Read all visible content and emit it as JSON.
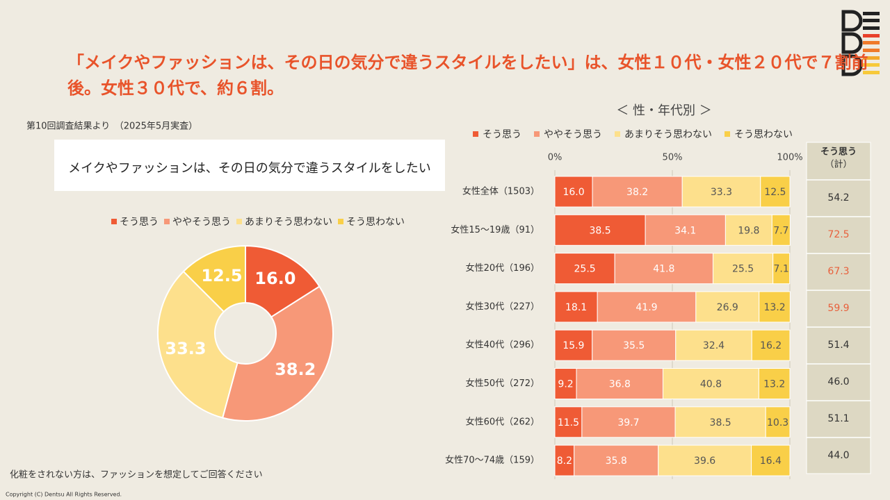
{
  "headline": [
    "「メイクやファッションは、その日の気分で違うスタイルをしたい」は、女性１０代・女性２０代で７割前",
    "後。女性３０代で、約６割。"
  ],
  "source_note": "第10回調査結果より　（2025年5月実査）",
  "footnote": "化粧をされない方は、ファッションを想定してご回答ください",
  "copyright": "Copyright (C) Dentsu All Rights Reserved.",
  "chart_data": [
    {
      "type": "pie",
      "title": "メイクやファッションは、その日の気分で違うスタイルをしたい",
      "categories": [
        "そう思う",
        "ややそう思う",
        "あまりそう思わない",
        "そう思わない"
      ],
      "values": [
        16.0,
        38.2,
        33.3,
        12.5
      ],
      "value_labels": [
        "16.0",
        "38.2",
        "33.3",
        "12.5"
      ],
      "colors": [
        "#ef5b35",
        "#f79878",
        "#fde08c",
        "#f9cf48"
      ],
      "donut": true
    },
    {
      "type": "stacked_bar",
      "orientation": "horizontal",
      "title": "＜ 性・年代別 ＞",
      "categories": [
        "女性全体（1503）",
        "女性15～19歳（91）",
        "女性20代（196）",
        "女性30代（227）",
        "女性40代（296）",
        "女性50代（272）",
        "女性60代（262）",
        "女性70～74歳（159）"
      ],
      "series": [
        {
          "name": "そう思う",
          "color": "#ef5b35",
          "label_color": "#ffffff",
          "values": [
            16.0,
            38.5,
            25.5,
            18.1,
            15.9,
            9.2,
            11.5,
            8.2
          ],
          "value_labels": [
            "16.0",
            "38.5",
            "25.5",
            "18.1",
            "15.9",
            "9.2",
            "11.5",
            "8.2"
          ]
        },
        {
          "name": "ややそう思う",
          "color": "#f79878",
          "label_color": "#ffffff",
          "values": [
            38.2,
            34.1,
            41.8,
            41.9,
            35.5,
            36.8,
            39.7,
            35.8
          ],
          "value_labels": [
            "38.2",
            "34.1",
            "41.8",
            "41.9",
            "35.5",
            "36.8",
            "39.7",
            "35.8"
          ]
        },
        {
          "name": "あまりそう思わない",
          "color": "#fde08c",
          "label_color": "#555555",
          "values": [
            33.3,
            19.8,
            25.5,
            26.9,
            32.4,
            40.8,
            38.5,
            39.6
          ],
          "value_labels": [
            "33.3",
            "19.8",
            "25.5",
            "26.9",
            "32.4",
            "40.8",
            "38.5",
            "39.6"
          ]
        },
        {
          "name": "そう思わない",
          "color": "#f9cf48",
          "label_color": "#555555",
          "values": [
            12.5,
            7.7,
            7.1,
            13.2,
            16.2,
            13.2,
            10.3,
            16.4
          ],
          "value_labels": [
            "12.5",
            "7.7",
            "7.1",
            "13.2",
            "16.2",
            "13.2",
            "10.3",
            "16.4"
          ]
        }
      ],
      "xlim": [
        0,
        100
      ],
      "xticks": [
        {
          "value": 0,
          "label": "0%"
        },
        {
          "value": 50,
          "label": "50%"
        },
        {
          "value": 100,
          "label": "100%"
        }
      ],
      "grid": true
    }
  ],
  "table": {
    "header": [
      "そう思う",
      "（計）"
    ],
    "values": [
      "54.2",
      "72.5",
      "67.3",
      "59.9",
      "51.4",
      "46.0",
      "51.1",
      "44.0"
    ],
    "highlight": [
      false,
      true,
      true,
      true,
      false,
      false,
      false,
      false
    ],
    "highlight_color": "#e8603c"
  }
}
